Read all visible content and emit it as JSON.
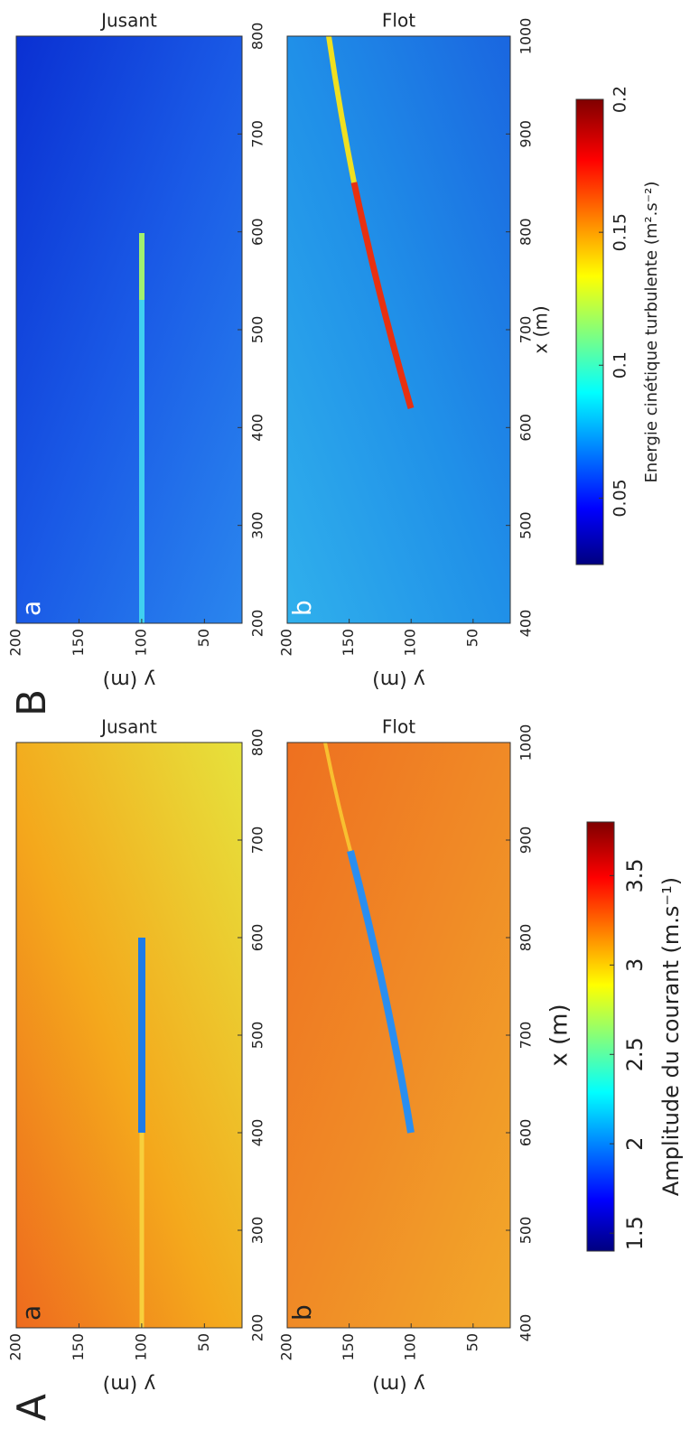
{
  "parts": [
    {
      "label": "A",
      "panels": [
        {
          "type": "heatmap",
          "label": "a",
          "title": "Jusant",
          "xlim": [
            200,
            800
          ],
          "xticks": [
            200,
            300,
            400,
            500,
            600,
            700,
            800
          ],
          "ylim": [
            20,
            200
          ],
          "yticks": [
            50,
            100,
            150,
            200
          ],
          "ylabel": "y (m)"
        },
        {
          "type": "heatmap",
          "label": "b",
          "title": "Flot",
          "xlim": [
            400,
            1000
          ],
          "xticks": [
            400,
            500,
            600,
            700,
            800,
            900,
            1000
          ],
          "ylim": [
            20,
            200
          ],
          "yticks": [
            50,
            100,
            150,
            200
          ],
          "ylabel": "y (m)",
          "xlabel": "x (m)"
        }
      ],
      "colorbar": {
        "label": "Amplitude du courant (m.s⁻¹)",
        "clim": [
          1.4,
          3.8
        ],
        "ticks": [
          1.5,
          2,
          2.5,
          3,
          3.5
        ]
      }
    },
    {
      "label": "B",
      "panels": [
        {
          "type": "heatmap",
          "label": "a",
          "title": "Jusant",
          "xlim": [
            200,
            800
          ],
          "xticks": [
            200,
            300,
            400,
            500,
            600,
            700,
            800
          ],
          "ylim": [
            20,
            200
          ],
          "yticks": [
            50,
            100,
            150,
            200
          ],
          "ylabel": "y (m)"
        },
        {
          "type": "heatmap",
          "label": "b",
          "title": "Flot",
          "xlim": [
            400,
            1000
          ],
          "xticks": [
            400,
            500,
            600,
            700,
            800,
            900,
            1000
          ],
          "ylim": [
            20,
            200
          ],
          "yticks": [
            50,
            100,
            150,
            200
          ],
          "ylabel": "y (m)",
          "xlabel": "x (m)"
        }
      ],
      "colorbar": {
        "label": "Energie cinétique turbulente (m².s⁻²)",
        "clim": [
          0.025,
          0.2
        ],
        "ticks": [
          0.05,
          0.1,
          0.15,
          0.2
        ]
      }
    }
  ]
}
